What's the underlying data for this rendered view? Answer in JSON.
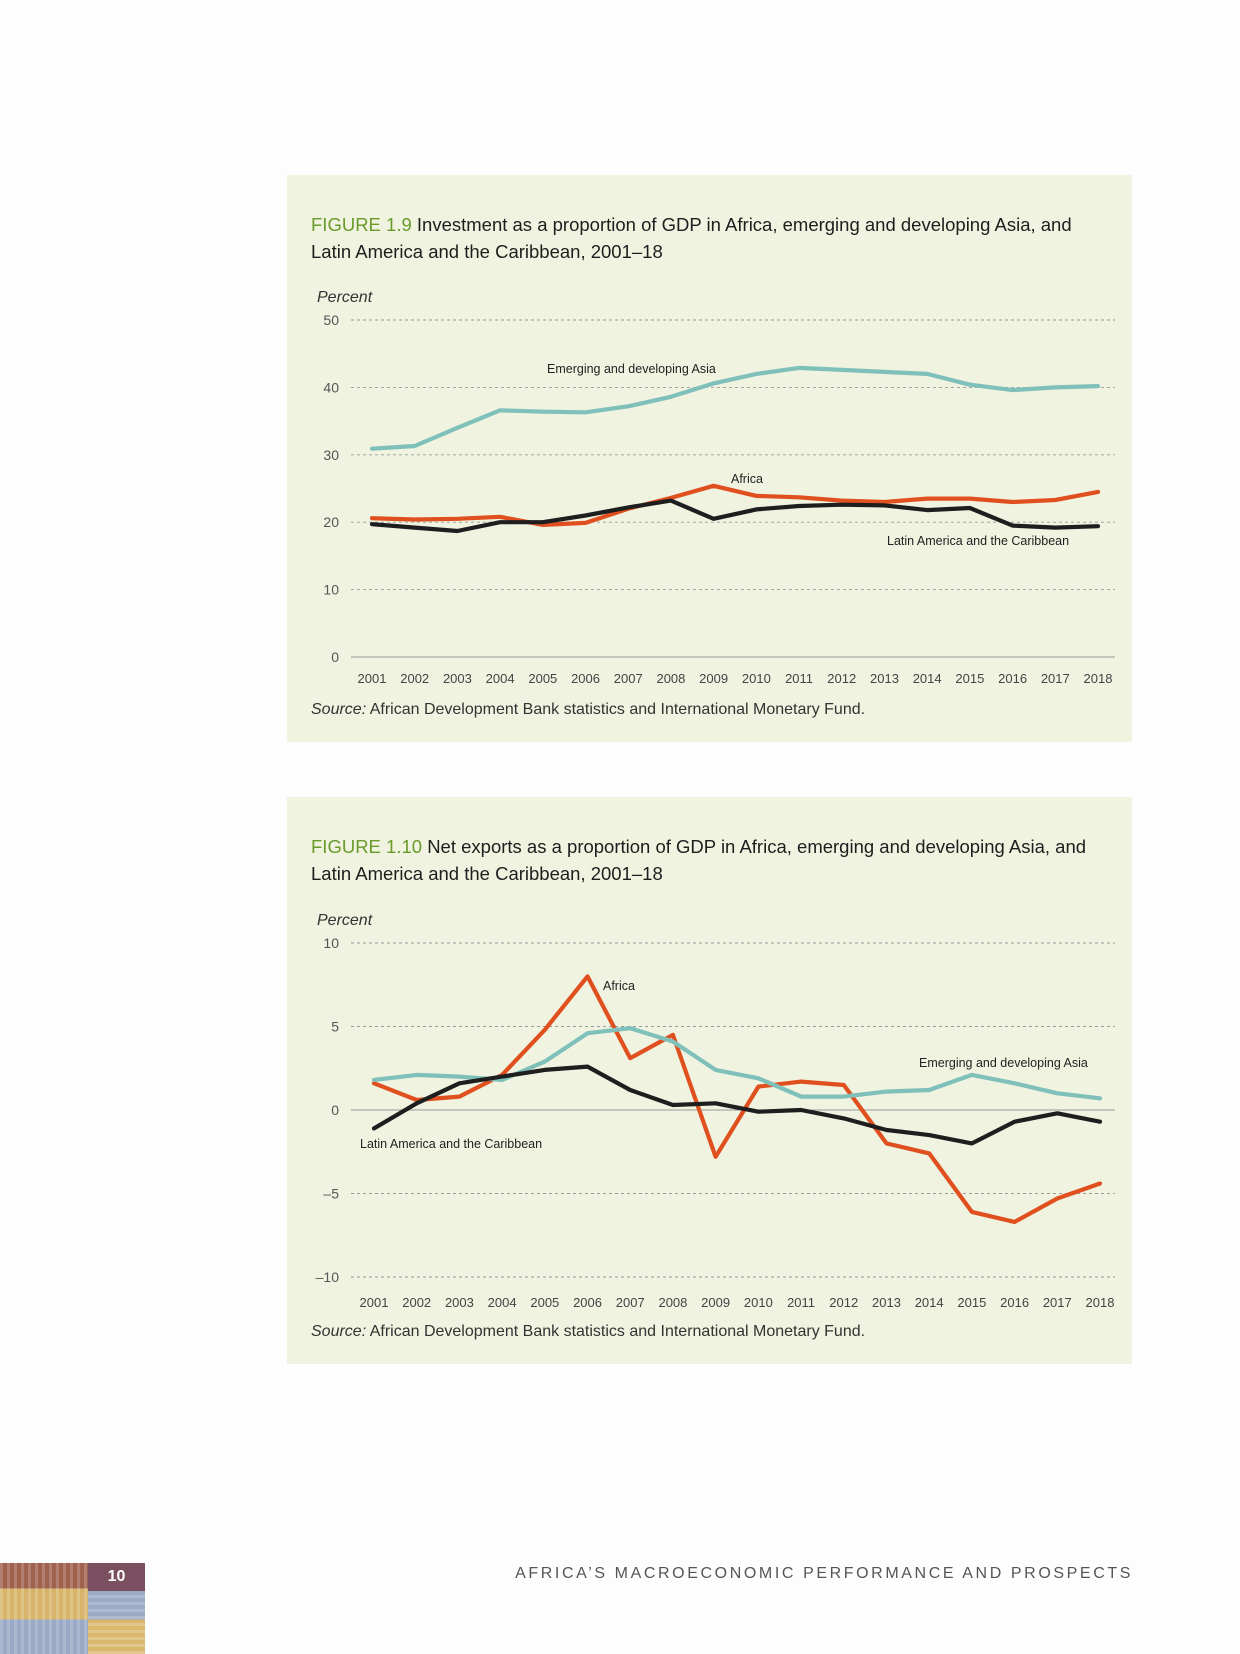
{
  "figures": [
    {
      "label": "FIGURE 1.9",
      "title": "Investment as a proportion of GDP in Africa, emerging and developing Asia, and Latin America and the Caribbean, 2001–18",
      "source_prefix": "Source:",
      "source_text": " African Development Bank statistics and International Monetary Fund."
    },
    {
      "label": "FIGURE 1.10",
      "title": "Net exports as a proportion of GDP in Africa, emerging and developing Asia, and Latin America and the Caribbean, 2001–18",
      "source_prefix": "Source:",
      "source_text": " African Development Bank statistics and International Monetary Fund."
    }
  ],
  "chart_data": [
    {
      "type": "line",
      "title": "Investment as a proportion of GDP in Africa, emerging and developing Asia, and Latin America and the Caribbean, 2001–18",
      "ylabel": "Percent",
      "xlabel": "",
      "ylim": [
        0,
        50
      ],
      "yticks": [
        0,
        10,
        20,
        30,
        40,
        50
      ],
      "ytick_labels": [
        "0",
        "10",
        "20",
        "30",
        "40",
        "50"
      ],
      "grid": true,
      "x": [
        "2001",
        "2002",
        "2003",
        "2004",
        "2005",
        "2006",
        "2007",
        "2008",
        "2009",
        "2010",
        "2011",
        "2012",
        "2013",
        "2014",
        "2015",
        "2016",
        "2017",
        "2018"
      ],
      "series": [
        {
          "name": "Emerging and developing Asia",
          "color": "#7fc0bb",
          "values": [
            30.9,
            31.3,
            34.0,
            36.6,
            36.4,
            36.3,
            37.2,
            38.6,
            40.6,
            42.0,
            42.9,
            42.6,
            42.3,
            42.0,
            40.4,
            39.6,
            40.0,
            40.2
          ]
        },
        {
          "name": "Africa",
          "color": "#e0501f",
          "values": [
            20.6,
            20.4,
            20.5,
            20.8,
            19.6,
            19.9,
            22.0,
            23.6,
            25.4,
            23.9,
            23.7,
            23.2,
            23.0,
            23.5,
            23.5,
            23.0,
            23.3,
            24.5
          ]
        },
        {
          "name": "Latin America and the Caribbean",
          "color": "#1e1e1e",
          "values": [
            19.7,
            19.2,
            18.7,
            20.0,
            20.0,
            21.0,
            22.2,
            23.2,
            20.5,
            21.9,
            22.4,
            22.6,
            22.5,
            21.8,
            22.1,
            19.5,
            19.2,
            19.4
          ]
        }
      ]
    },
    {
      "type": "line",
      "title": "Net exports as a proportion of GDP in Africa, emerging and developing Asia, and Latin America and the Caribbean, 2001–18",
      "ylabel": "Percent",
      "xlabel": "",
      "ylim": [
        -10,
        10
      ],
      "yticks": [
        -10,
        -5,
        0,
        5,
        10
      ],
      "ytick_labels": [
        "–10",
        "–5",
        "0",
        "5",
        "10"
      ],
      "grid": true,
      "x": [
        "2001",
        "2002",
        "2003",
        "2004",
        "2005",
        "2006",
        "2007",
        "2008",
        "2009",
        "2010",
        "2011",
        "2012",
        "2013",
        "2014",
        "2015",
        "2016",
        "2017",
        "2018"
      ],
      "series": [
        {
          "name": "Africa",
          "color": "#e0501f",
          "values": [
            1.6,
            0.6,
            0.8,
            2.1,
            4.8,
            8.0,
            3.1,
            4.5,
            -2.8,
            1.4,
            1.7,
            1.5,
            -2.0,
            -2.6,
            -6.1,
            -6.7,
            -5.3,
            -4.4
          ]
        },
        {
          "name": "Emerging and developing Asia",
          "color": "#7fc0bb",
          "values": [
            1.8,
            2.1,
            2.0,
            1.8,
            2.9,
            4.6,
            4.9,
            4.1,
            2.4,
            1.9,
            0.8,
            0.8,
            1.1,
            1.2,
            2.1,
            1.6,
            1.0,
            0.7
          ]
        },
        {
          "name": "Latin America and the Caribbean",
          "color": "#1e1e1e",
          "values": [
            -1.1,
            0.4,
            1.6,
            2.0,
            2.4,
            2.6,
            1.2,
            0.3,
            0.4,
            -0.1,
            0.0,
            -0.5,
            -1.2,
            -1.5,
            -2.0,
            -0.7,
            -0.2,
            -0.7
          ]
        }
      ]
    }
  ],
  "footer": {
    "page_number": "10",
    "running_title": "AFRICA’S MACROECONOMIC PERFORMANCE AND PROSPECTS"
  }
}
